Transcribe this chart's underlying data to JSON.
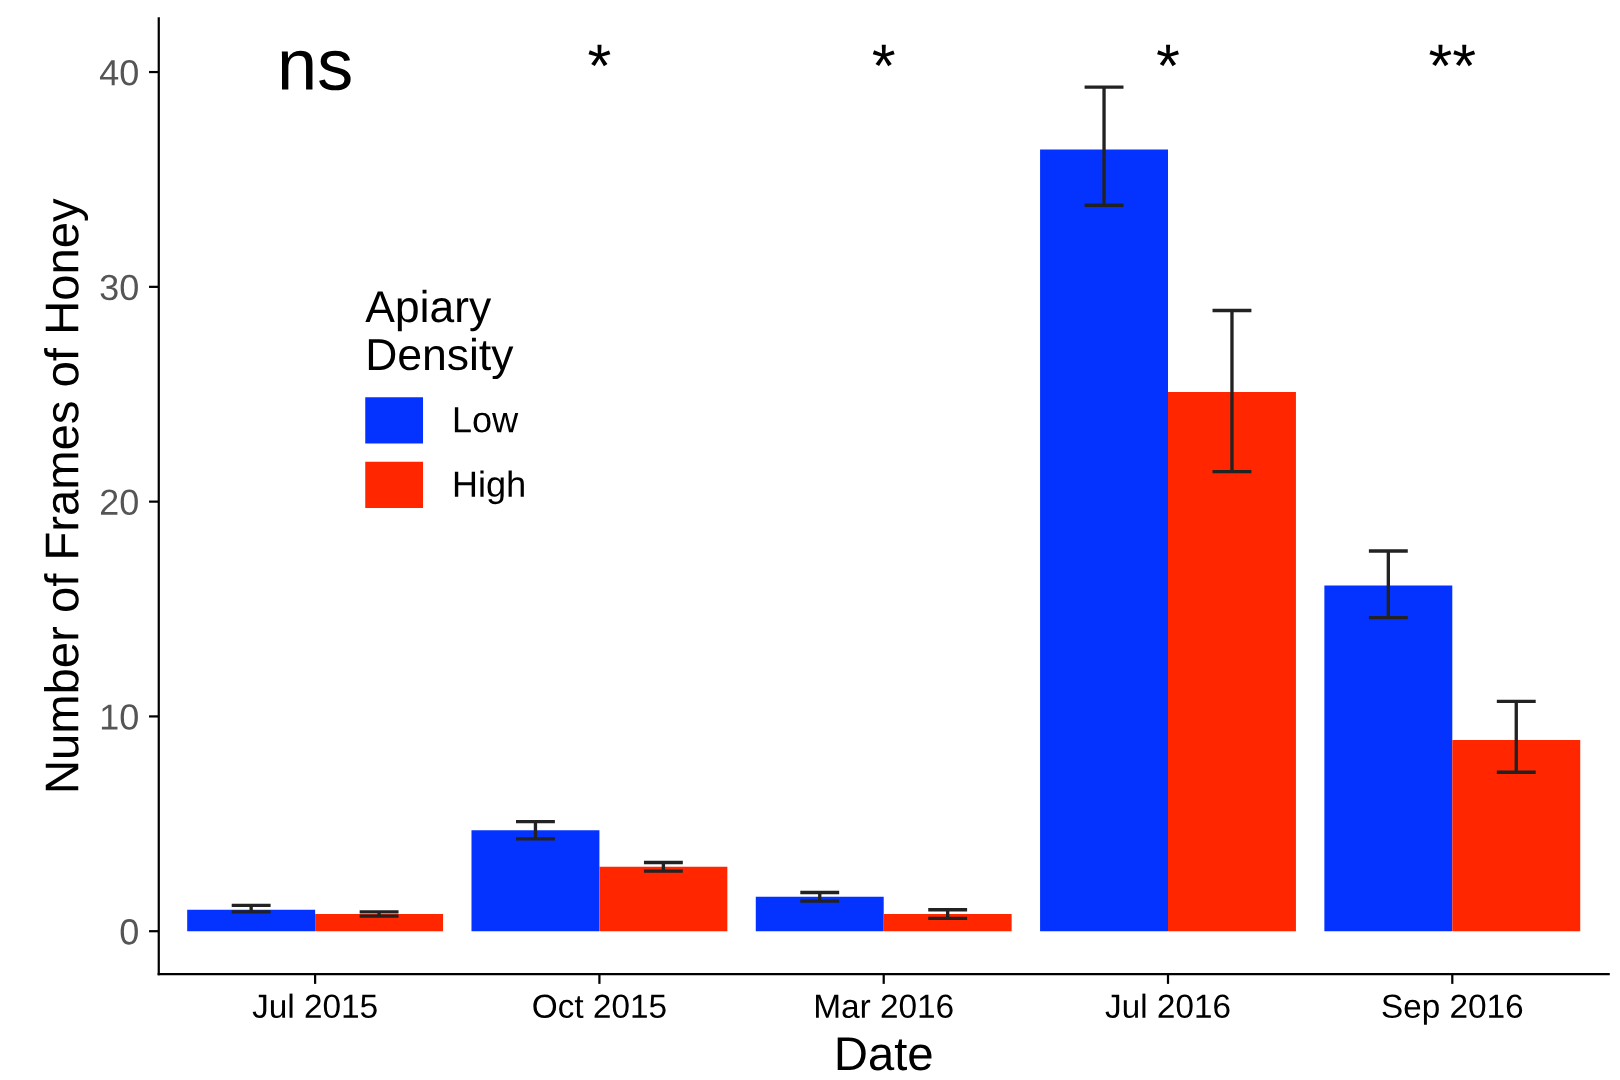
{
  "chart_data": {
    "type": "bar",
    "xlabel": "Date",
    "ylabel": "Number of Frames of Honey",
    "legend_title": "Apiary\nDensity",
    "legend": "top left",
    "grid": false,
    "categories": [
      "Jul 2015",
      "Oct 2015",
      "Mar 2016",
      "Jul 2016",
      "Sep 2016"
    ],
    "series": [
      {
        "name": "Low",
        "color": "#0433ff",
        "values": [
          1.0,
          4.7,
          1.6,
          36.4,
          16.1
        ],
        "errors": [
          [
            0.9,
            1.2
          ],
          [
            4.3,
            5.1
          ],
          [
            1.4,
            1.8
          ],
          [
            33.8,
            39.3
          ],
          [
            14.6,
            17.7
          ]
        ]
      },
      {
        "name": "High",
        "color": "#ff2600",
        "values": [
          0.8,
          3.0,
          0.8,
          25.1,
          8.9
        ],
        "errors": [
          [
            0.7,
            0.9
          ],
          [
            2.8,
            3.2
          ],
          [
            0.6,
            1.0
          ],
          [
            21.4,
            28.9
          ],
          [
            7.4,
            10.7
          ]
        ]
      }
    ],
    "ylim": [
      -2,
      42.5
    ],
    "yticks": [
      0,
      10,
      20,
      30,
      40
    ],
    "annotations": [
      "ns",
      "*",
      "*",
      "*",
      "**"
    ]
  }
}
